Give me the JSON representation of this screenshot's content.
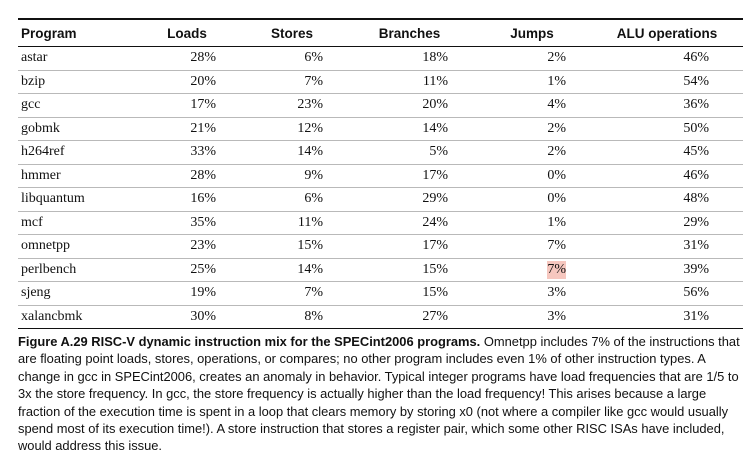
{
  "table": {
    "headers": [
      "Program",
      "Loads",
      "Stores",
      "Branches",
      "Jumps",
      "ALU operations"
    ],
    "rows": [
      [
        "astar",
        "28%",
        "6%",
        "18%",
        "2%",
        "46%"
      ],
      [
        "bzip",
        "20%",
        "7%",
        "11%",
        "1%",
        "54%"
      ],
      [
        "gcc",
        "17%",
        "23%",
        "20%",
        "4%",
        "36%"
      ],
      [
        "gobmk",
        "21%",
        "12%",
        "14%",
        "2%",
        "50%"
      ],
      [
        "h264ref",
        "33%",
        "14%",
        "5%",
        "2%",
        "45%"
      ],
      [
        "hmmer",
        "28%",
        "9%",
        "17%",
        "0%",
        "46%"
      ],
      [
        "libquantum",
        "16%",
        "6%",
        "29%",
        "0%",
        "48%"
      ],
      [
        "mcf",
        "35%",
        "11%",
        "24%",
        "1%",
        "29%"
      ],
      [
        "omnetpp",
        "23%",
        "15%",
        "17%",
        "7%",
        "31%"
      ],
      [
        "perlbench",
        "25%",
        "14%",
        "15%",
        "7%",
        "39%"
      ],
      [
        "sjeng",
        "19%",
        "7%",
        "15%",
        "3%",
        "56%"
      ],
      [
        "xalancbmk",
        "30%",
        "8%",
        "27%",
        "3%",
        "31%"
      ]
    ],
    "highlight": {
      "row": 9,
      "col": 4,
      "color": "#f6c7bf"
    }
  },
  "caption": {
    "lead": "Figure A.29  RISC-V dynamic instruction mix for the SPECint2006 programs.",
    "body": " Omnetpp includes 7% of the instructions that are floating point loads, stores, operations, or compares; no other program includes even 1% of other instruction types. A change in gcc in SPECint2006, creates an anomaly in behavior. Typical integer programs have load frequencies that are 1/5 to 3x the store frequency. In gcc, the store frequency is actually higher than the load frequency! This arises because a large fraction of the execution time is spent in a loop that clears memory by storing x0 (not where a compiler like gcc would usually spend most of its execution time!). A store instruction that stores a register pair, which some other RISC ISAs have included, would address this issue."
  }
}
